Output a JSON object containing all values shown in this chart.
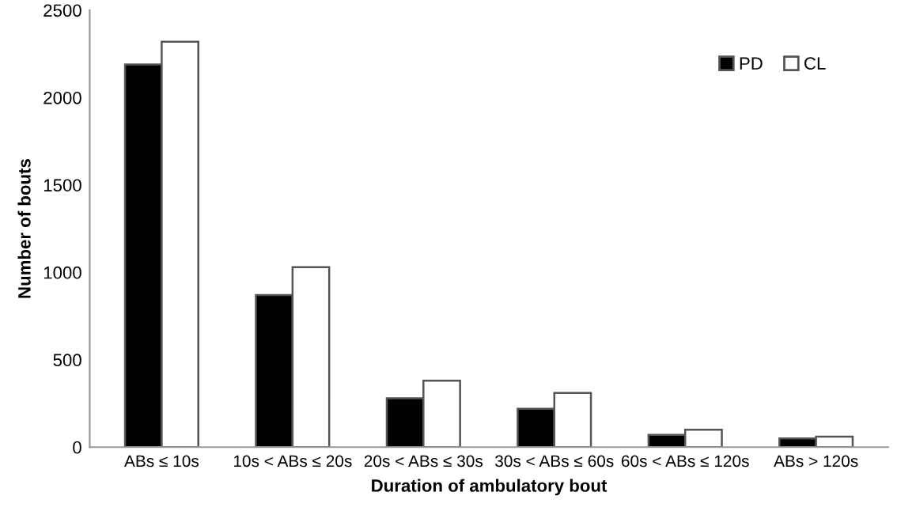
{
  "chart_data": {
    "type": "bar",
    "xlabel": "Duration of ambulatory bout",
    "ylabel": "Number of bouts",
    "categories": [
      "ABs ≤ 10s",
      "10s < ABs ≤ 20s",
      "20s < ABs ≤ 30s",
      "30s < ABs ≤ 60s",
      "60s < ABs ≤ 120s",
      "ABs > 120s"
    ],
    "series": [
      {
        "name": "PD",
        "color": "#000000",
        "values": [
          2190,
          870,
          280,
          220,
          70,
          50
        ]
      },
      {
        "name": "CL",
        "color": "#ffffff",
        "values": [
          2320,
          1030,
          380,
          310,
          100,
          60
        ]
      }
    ],
    "ylim": [
      0,
      2500
    ],
    "yticks": [
      0,
      500,
      1000,
      1500,
      2000,
      2500
    ],
    "grid": false,
    "legend": "top right"
  }
}
